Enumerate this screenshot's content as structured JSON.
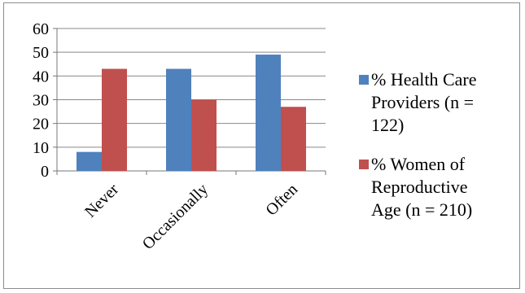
{
  "chart_data": {
    "type": "bar",
    "categories": [
      "Never",
      "Occasionally",
      "Often"
    ],
    "series": [
      {
        "name": "% Health Care Providers (n = 122)",
        "legend_lines": [
          "% Health Care",
          "Providers (n =",
          "122)"
        ],
        "color": "#4f81bd",
        "values": [
          8,
          43,
          49
        ]
      },
      {
        "name": "% Women of Reproductive Age (n = 210)",
        "legend_lines": [
          "% Women of",
          "Reproductive",
          "Age (n = 210)"
        ],
        "color": "#c0504d",
        "values": [
          43,
          30,
          27
        ]
      }
    ],
    "yticks": [
      0,
      10,
      20,
      30,
      40,
      50,
      60
    ],
    "ylim": [
      0,
      60
    ],
    "grid": true,
    "legend_position": "right",
    "gridline_color": "#888888"
  }
}
